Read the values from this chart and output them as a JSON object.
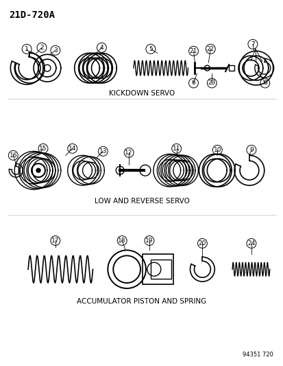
{
  "title": "21D-720A",
  "bg_color": "#ffffff",
  "line_color": "#000000",
  "section1_label": "KICKDOWN SERVO",
  "section2_label": "LOW AND REVERSE SERVO",
  "section3_label": "ACCUMULATOR PISTON AND SPRING",
  "doc_number": "94351 720",
  "fig_width": 4.14,
  "fig_height": 5.33,
  "dpi": 100
}
